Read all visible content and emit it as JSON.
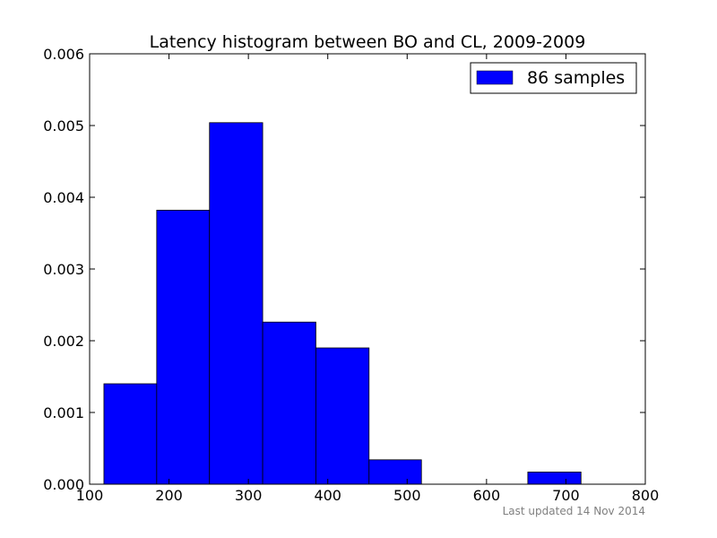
{
  "chart_data": {
    "type": "bar",
    "title": "Latency histogram between BO and CL, 2009-2009",
    "xlabel": "",
    "ylabel": "",
    "xlim": [
      100,
      800
    ],
    "ylim": [
      0,
      0.006
    ],
    "x_ticks": [
      "100",
      "200",
      "300",
      "400",
      "500",
      "600",
      "700",
      "800"
    ],
    "y_ticks": [
      "0.000",
      "0.001",
      "0.002",
      "0.003",
      "0.004",
      "0.005",
      "0.006"
    ],
    "bins": [
      {
        "x0": 118,
        "x1": 184.5,
        "value": 0.0014
      },
      {
        "x0": 184.5,
        "x1": 251,
        "value": 0.00382
      },
      {
        "x0": 251,
        "x1": 318,
        "value": 0.00504
      },
      {
        "x0": 318,
        "x1": 385,
        "value": 0.00226
      },
      {
        "x0": 385,
        "x1": 452,
        "value": 0.0019
      },
      {
        "x0": 452,
        "x1": 518,
        "value": 0.00034
      },
      {
        "x0": 518,
        "x1": 585,
        "value": 0
      },
      {
        "x0": 585,
        "x1": 652,
        "value": 0
      },
      {
        "x0": 652,
        "x1": 719,
        "value": 0.00017
      }
    ],
    "series": [
      {
        "name": "86 samples",
        "color": "#0000ff"
      }
    ],
    "legend_position": "top-right",
    "grid": false,
    "edge_color": "#000000"
  },
  "footer": "Last updated 14 Nov 2014"
}
